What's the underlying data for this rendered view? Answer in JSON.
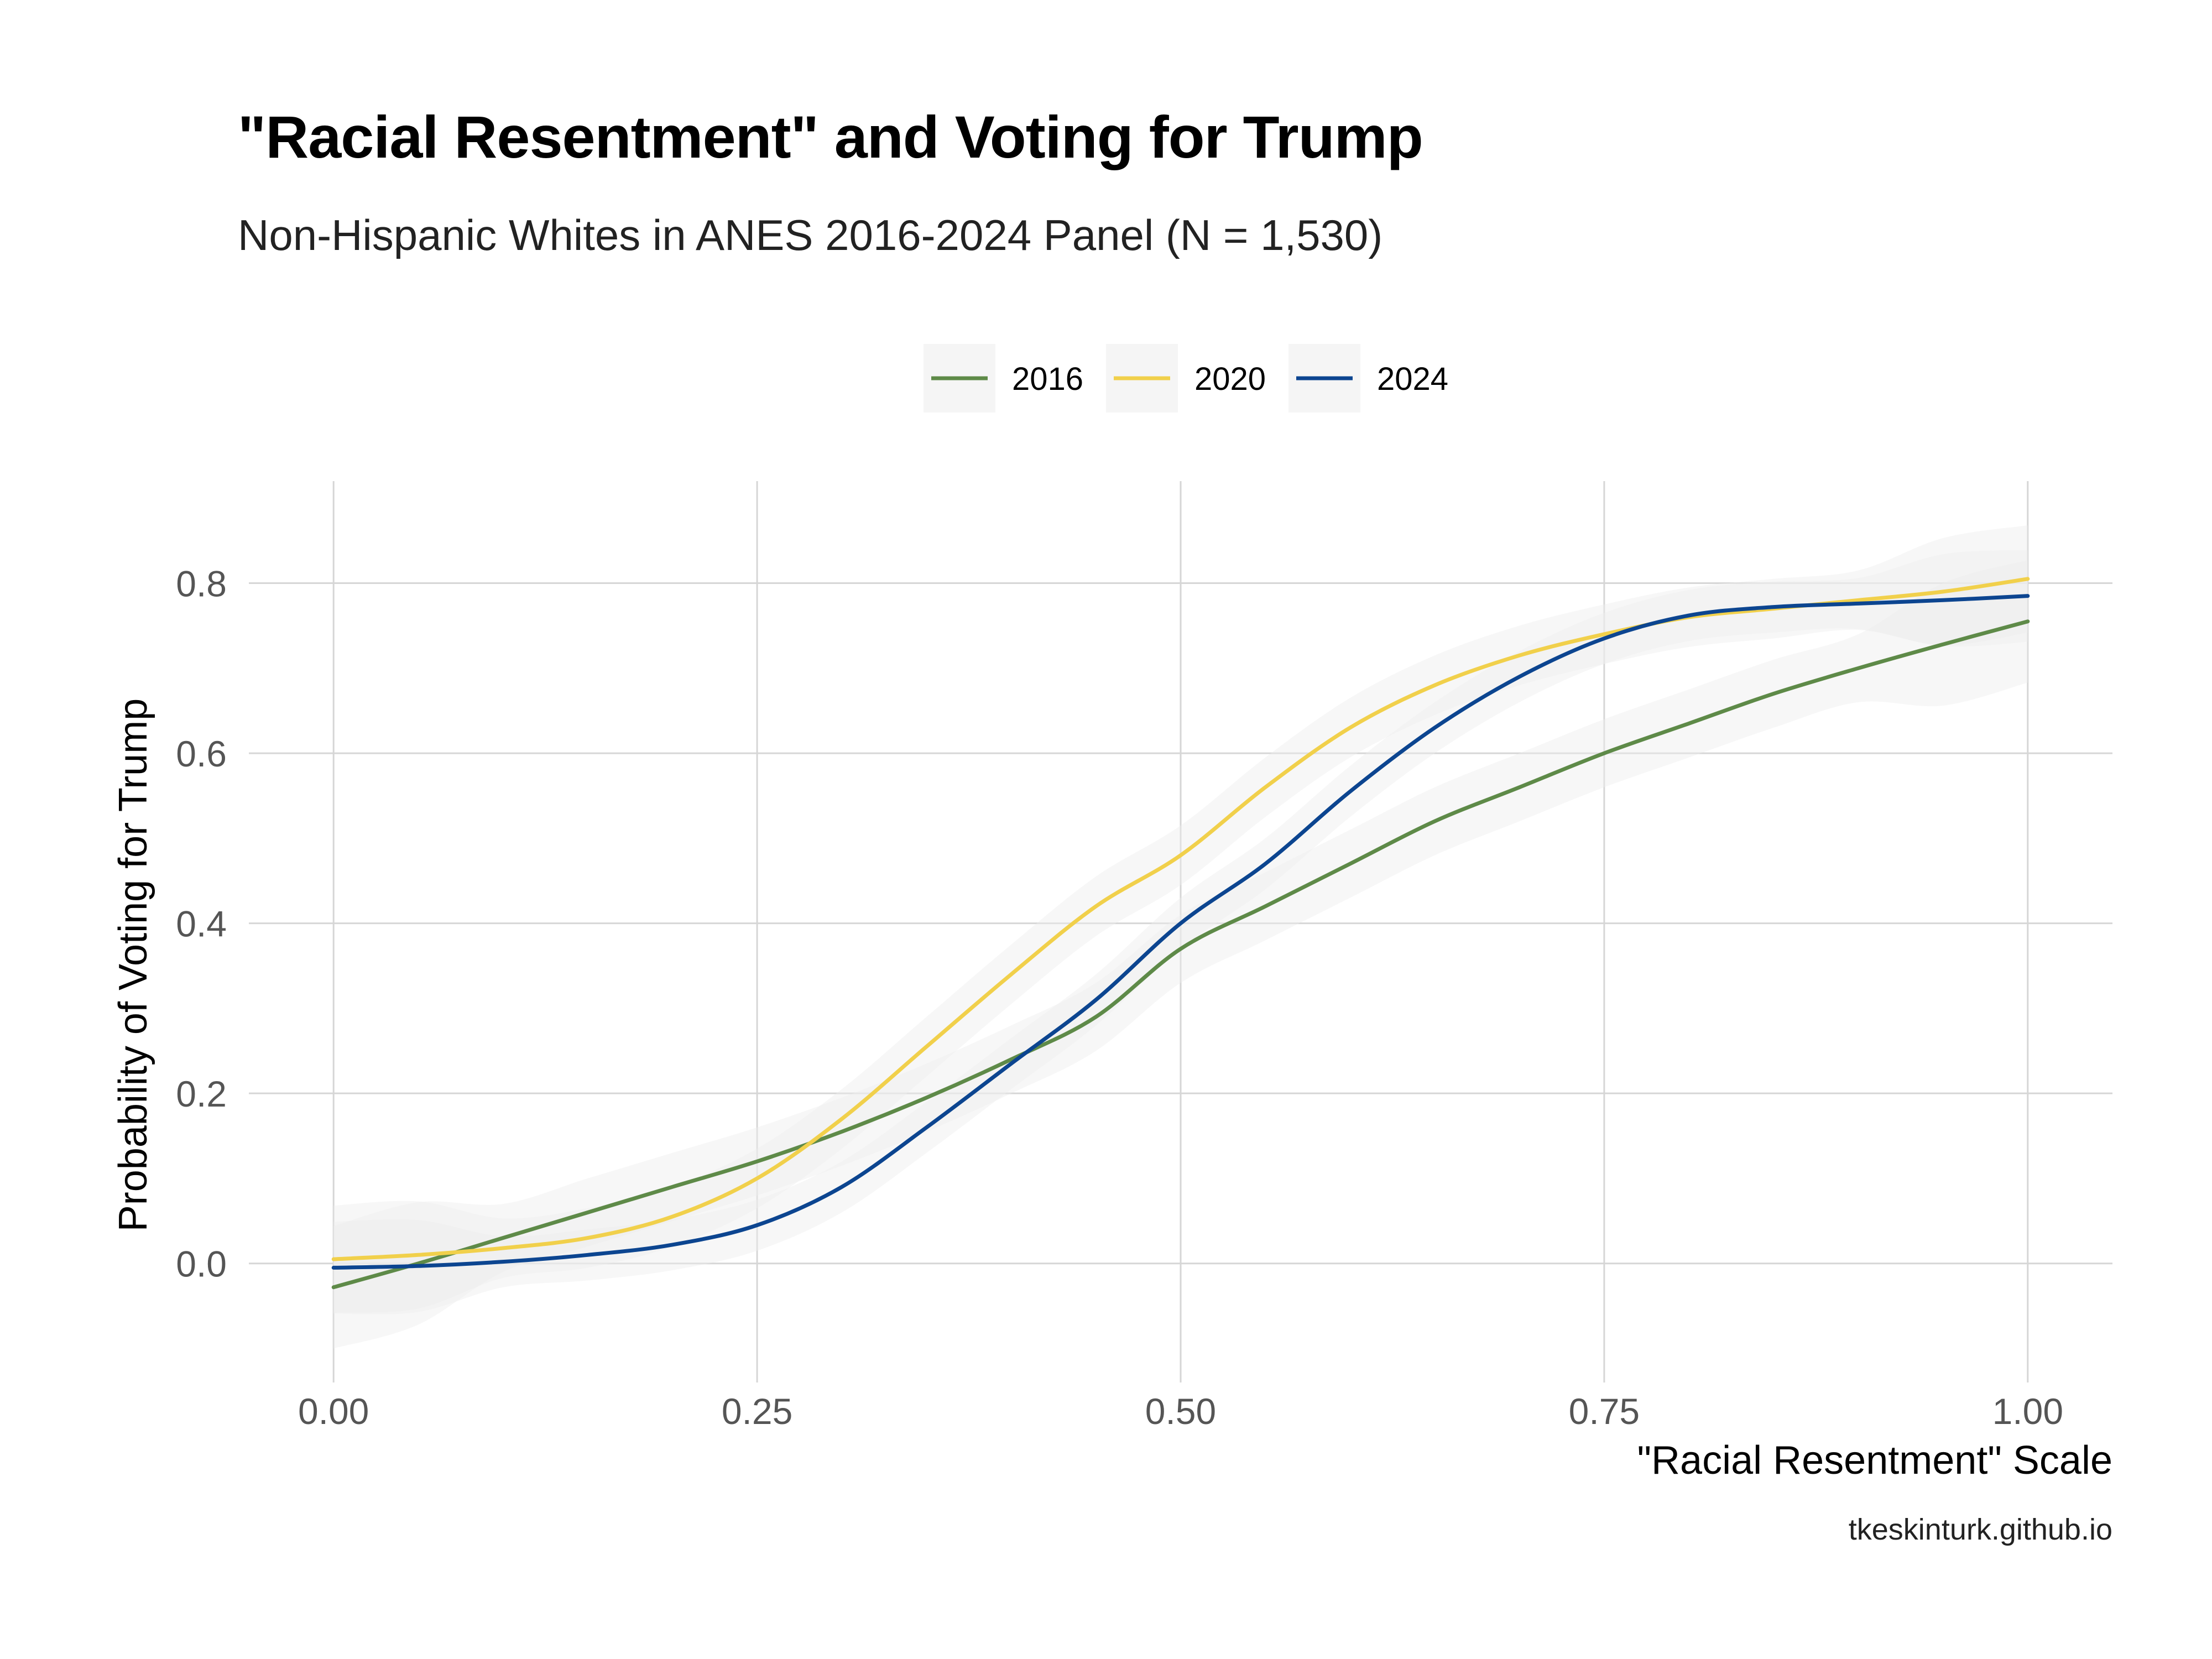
{
  "title": "\"Racial Resentment\" and Voting for Trump",
  "subtitle": "Non-Hispanic Whites in ANES 2016-2024 Panel (N = 1,530)",
  "caption": "tkeskinturk.github.io",
  "chart_data": {
    "type": "line",
    "xlabel": "\"Racial Resentment\" Scale",
    "ylabel": "Probability of Voting for Trump",
    "xlim": [
      -0.05,
      1.05
    ],
    "ylim": [
      -0.14,
      0.92
    ],
    "xticks": [
      0,
      0.25,
      0.5,
      0.75,
      1.0
    ],
    "xtick_labels": [
      "0.00",
      "0.25",
      "0.50",
      "0.75",
      "1.00"
    ],
    "yticks": [
      0,
      0.2,
      0.4,
      0.6,
      0.8
    ],
    "ytick_labels": [
      "0.0",
      "0.2",
      "0.4",
      "0.6",
      "0.8"
    ],
    "grid": true,
    "legend_position": "top",
    "confidence_bands": true,
    "series": [
      {
        "name": "2016",
        "color": "#5e8a48",
        "band": 0.04,
        "points": [
          [
            0.0,
            -0.028
          ],
          [
            0.05,
            0.0
          ],
          [
            0.1,
            0.03
          ],
          [
            0.15,
            0.06
          ],
          [
            0.2,
            0.09
          ],
          [
            0.25,
            0.12
          ],
          [
            0.3,
            0.155
          ],
          [
            0.35,
            0.195
          ],
          [
            0.4,
            0.24
          ],
          [
            0.45,
            0.29
          ],
          [
            0.5,
            0.37
          ],
          [
            0.55,
            0.42
          ],
          [
            0.6,
            0.47
          ],
          [
            0.65,
            0.52
          ],
          [
            0.7,
            0.56
          ],
          [
            0.75,
            0.6
          ],
          [
            0.8,
            0.635
          ],
          [
            0.85,
            0.67
          ],
          [
            0.9,
            0.7
          ],
          [
            0.95,
            0.728
          ],
          [
            1.0,
            0.755
          ]
        ]
      },
      {
        "name": "2020",
        "color": "#f1d04b",
        "band": 0.035,
        "points": [
          [
            0.0,
            0.005
          ],
          [
            0.05,
            0.01
          ],
          [
            0.1,
            0.018
          ],
          [
            0.15,
            0.03
          ],
          [
            0.2,
            0.055
          ],
          [
            0.25,
            0.1
          ],
          [
            0.3,
            0.17
          ],
          [
            0.35,
            0.255
          ],
          [
            0.4,
            0.34
          ],
          [
            0.45,
            0.42
          ],
          [
            0.5,
            0.48
          ],
          [
            0.55,
            0.56
          ],
          [
            0.6,
            0.63
          ],
          [
            0.65,
            0.68
          ],
          [
            0.7,
            0.715
          ],
          [
            0.75,
            0.74
          ],
          [
            0.8,
            0.76
          ],
          [
            0.85,
            0.77
          ],
          [
            0.9,
            0.78
          ],
          [
            0.95,
            0.79
          ],
          [
            1.0,
            0.805
          ]
        ]
      },
      {
        "name": "2024",
        "color": "#0c4590",
        "band": 0.03,
        "points": [
          [
            0.0,
            -0.005
          ],
          [
            0.05,
            -0.003
          ],
          [
            0.1,
            0.002
          ],
          [
            0.15,
            0.01
          ],
          [
            0.2,
            0.022
          ],
          [
            0.25,
            0.045
          ],
          [
            0.3,
            0.09
          ],
          [
            0.35,
            0.16
          ],
          [
            0.4,
            0.235
          ],
          [
            0.45,
            0.31
          ],
          [
            0.5,
            0.4
          ],
          [
            0.55,
            0.47
          ],
          [
            0.6,
            0.555
          ],
          [
            0.65,
            0.63
          ],
          [
            0.7,
            0.69
          ],
          [
            0.75,
            0.735
          ],
          [
            0.8,
            0.762
          ],
          [
            0.85,
            0.772
          ],
          [
            0.9,
            0.776
          ],
          [
            0.95,
            0.78
          ],
          [
            1.0,
            0.785
          ]
        ]
      }
    ]
  }
}
